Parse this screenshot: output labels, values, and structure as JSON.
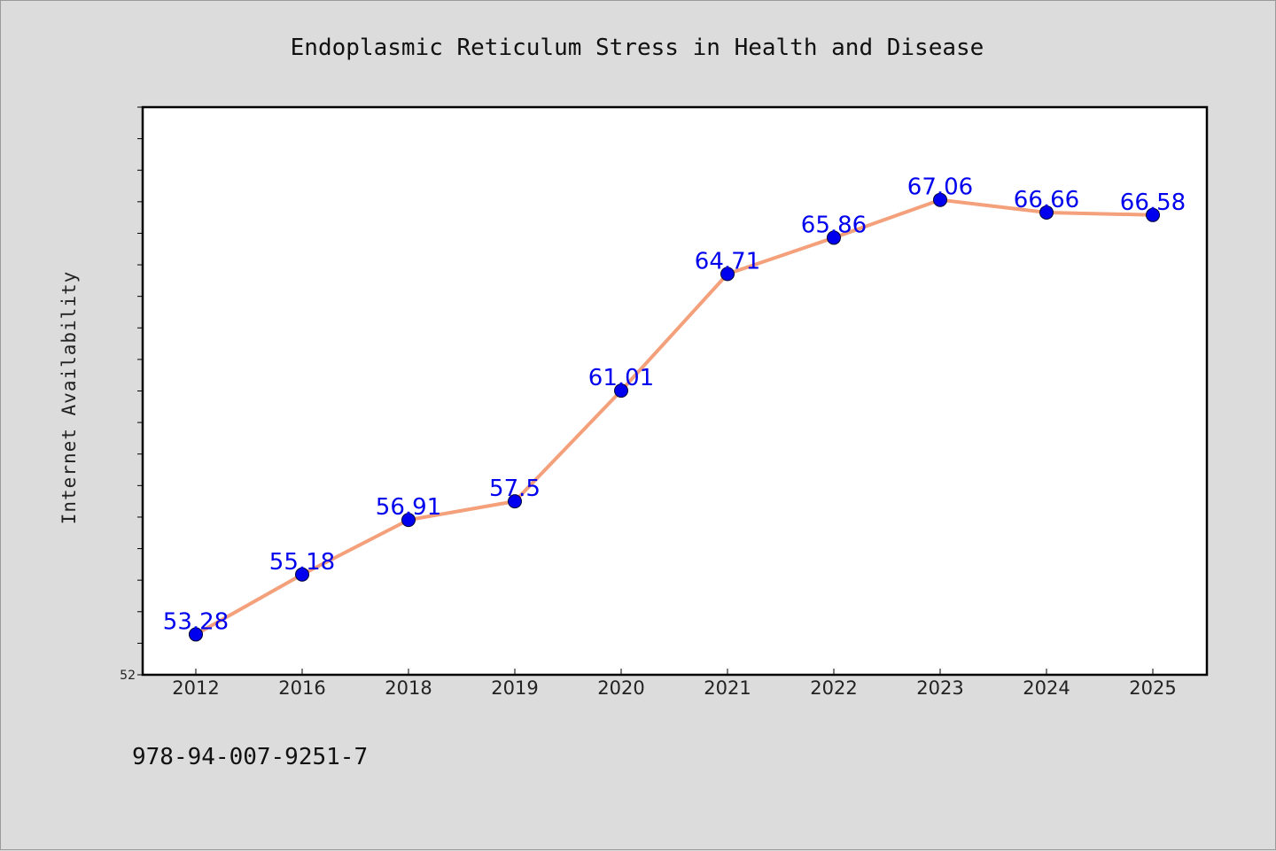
{
  "chart_data": {
    "type": "line",
    "title": "Endoplasmic Reticulum Stress in Health and Disease",
    "xlabel": "",
    "ylabel": "Internet Availability",
    "categories": [
      "2012",
      "2016",
      "2018",
      "2019",
      "2020",
      "2021",
      "2022",
      "2023",
      "2024",
      "2025"
    ],
    "series": [
      {
        "values": [
          53.28,
          55.18,
          56.91,
          57.5,
          61.01,
          64.71,
          65.86,
          67.06,
          66.66,
          66.58
        ],
        "labels": [
          "53.28",
          "55.18",
          "56.91",
          "57.5",
          "61.01",
          "64.71",
          "65.86",
          "67.06",
          "66.66",
          "66.58"
        ],
        "line_color": "#f4a07a",
        "marker_color": "#0000ee"
      }
    ],
    "ylim": [
      52,
      70
    ],
    "yticks_labeled": [
      "52"
    ],
    "grid": false,
    "legend": "none"
  },
  "footer": {
    "text": "978-94-007-9251-7"
  },
  "colors": {
    "background": "#dcdcdc",
    "plot_background": "#ffffff",
    "line": "#f4a07a",
    "marker": "#0000ee",
    "data_label": "#0000ee"
  }
}
